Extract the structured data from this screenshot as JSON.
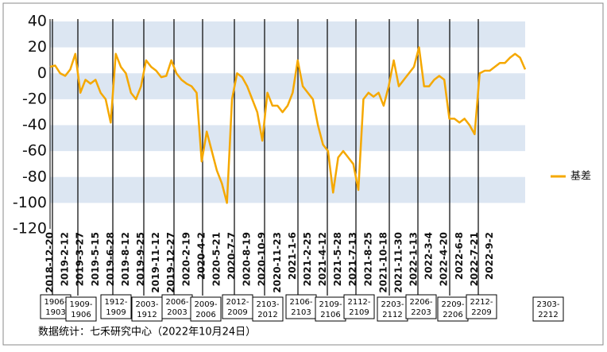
{
  "chart_data": {
    "type": "line",
    "categories": [
      "2018-12-20",
      null,
      null,
      "2019-2-12",
      null,
      null,
      "2019-3-27",
      null,
      null,
      "2019-5-15",
      null,
      null,
      "2019-6-28",
      null,
      null,
      "2019-8-12",
      null,
      null,
      "2019-9-25",
      null,
      null,
      "2019-11-12",
      null,
      null,
      "2019-12-27",
      null,
      null,
      "2020-2-19",
      null,
      null,
      "2020-4-2",
      null,
      null,
      "2020-5-21",
      null,
      null,
      "2020-7-7",
      null,
      null,
      "2020-8-19",
      null,
      null,
      "2020-10-9",
      null,
      null,
      "2020-11-23",
      null,
      null,
      "2021-1-6",
      null,
      null,
      "2021-2-25",
      null,
      null,
      "2021-4-12",
      null,
      null,
      "2021-5-28",
      null,
      null,
      "2021-7-13",
      null,
      null,
      "2021-8-25",
      null,
      null,
      "2021-10-18",
      null,
      null,
      "2021-11-30",
      null,
      null,
      "2022-1-13",
      null,
      null,
      "2022-3-4",
      null,
      null,
      "2022-4-20",
      null,
      null,
      "2022-6-8",
      null,
      null,
      "2022-7-21",
      null,
      null,
      "2022-9-2",
      null,
      null,
      null,
      null,
      null,
      null,
      null
    ],
    "series": [
      {
        "name": "基差",
        "color": "#f5a800",
        "values": [
          5,
          6,
          0,
          -2,
          3,
          15,
          -15,
          -5,
          -8,
          -5,
          -15,
          -20,
          -38,
          15,
          5,
          0,
          -15,
          -20,
          -10,
          10,
          5,
          2,
          -3,
          -2,
          10,
          0,
          -5,
          -8,
          -10,
          -15,
          -68,
          -45,
          -60,
          -75,
          -85,
          -100,
          -20,
          0,
          -3,
          -10,
          -20,
          -30,
          -52,
          -15,
          -25,
          -25,
          -30,
          -25,
          -15,
          10,
          -10,
          -15,
          -20,
          -40,
          -55,
          -60,
          -92,
          -65,
          -60,
          -65,
          -70,
          -90,
          -20,
          -15,
          -18,
          -15,
          -25,
          -10,
          10,
          -10,
          -5,
          0,
          5,
          20,
          -10,
          -10,
          -5,
          -2,
          -5,
          -35,
          -35,
          -38,
          -35,
          -40,
          -47,
          0,
          2,
          2,
          5,
          8,
          8,
          12,
          15,
          12,
          3
        ]
      }
    ],
    "ylim": [
      -120,
      40
    ],
    "yticks": [
      40,
      20,
      0,
      -20,
      -40,
      -60,
      -80,
      -100,
      -120
    ],
    "bands": true,
    "band_color": "#dce6f2",
    "legend": "right",
    "contracts": [
      "1906-1903",
      "1909-1906",
      "1912-1909",
      "2003-1912",
      "2006-2003",
      "2009-2006",
      "2012-2009",
      "2103-2012",
      "2106-2103",
      "2109-2106",
      "2112-2109",
      "2203-2112",
      "2206-2203",
      "2209-2206",
      "2212-2209",
      "2303-2212"
    ],
    "source": "数据统计：七禾研究中心（2022年10月24日）"
  }
}
